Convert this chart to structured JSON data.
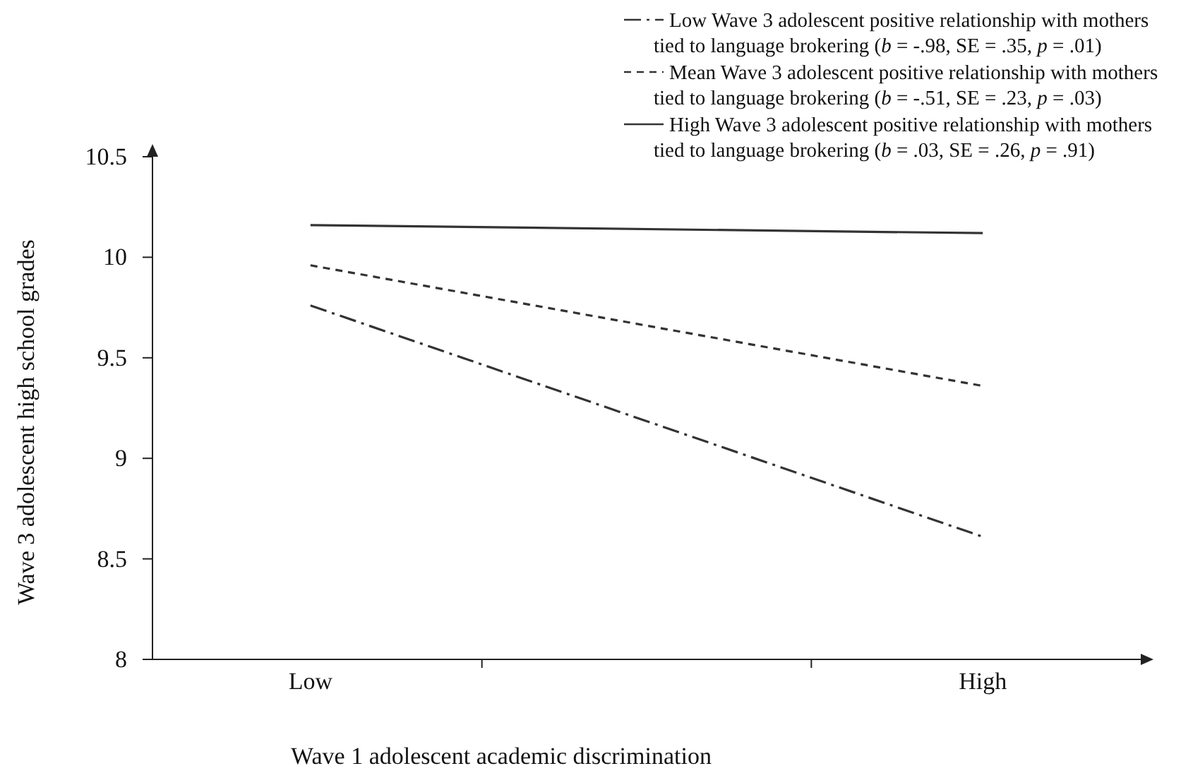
{
  "chart_data": {
    "type": "line",
    "xlabel": "Wave 1 adolescent academic discrimination",
    "ylabel": "Wave 3 adolescent high school grades",
    "categories": [
      "Low",
      "High"
    ],
    "ylim": [
      8,
      10.5
    ],
    "yticks": [
      8,
      8.5,
      9,
      9.5,
      10,
      10.5
    ],
    "grid": false,
    "legend": "top right",
    "marker": "none",
    "series": [
      {
        "name": "Low Wave 3 adolescent positive relationship with mothers\ntied to language brokering  (b = -.98, SE = .35, p = .01)",
        "color": "#333333",
        "line_style": "dashdot",
        "values": [
          9.76,
          8.61
        ]
      },
      {
        "name": "Mean Wave 3 adolescent positive relationship with mothers\ntied to language brokering  (b = -.51, SE = .23, p = .03)",
        "color": "#333333",
        "line_style": "dashed",
        "values": [
          9.96,
          9.36
        ]
      },
      {
        "name": "High Wave 3 adolescent positive relationship with mothers\ntied to language brokering  (b = .03, SE = .26, p = .91)",
        "color": "#333333",
        "line_style": "solid",
        "values": [
          10.16,
          10.12
        ]
      }
    ]
  }
}
